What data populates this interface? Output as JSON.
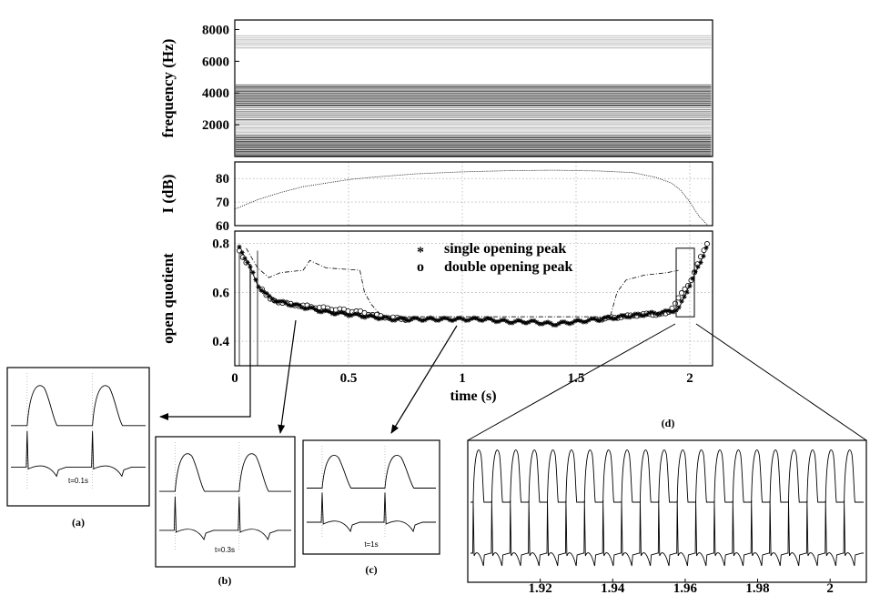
{
  "chart_data": [
    {
      "type": "heatmap",
      "panel": "spectrogram",
      "ylabel": "frequency (Hz)",
      "yticks": [
        2000,
        4000,
        6000,
        8000
      ],
      "ylim": [
        0,
        8600
      ],
      "xlim": [
        0,
        2.1
      ],
      "bands": [
        {
          "f_low": 0,
          "f_high": 1300,
          "darkness": 0.95
        },
        {
          "f_low": 1300,
          "f_high": 2300,
          "darkness": 0.3
        },
        {
          "f_low": 2300,
          "f_high": 3200,
          "darkness": 0.5
        },
        {
          "f_low": 3200,
          "f_high": 4500,
          "darkness": 0.85
        },
        {
          "f_low": 6800,
          "f_high": 7600,
          "darkness": 0.25
        }
      ]
    },
    {
      "type": "line",
      "panel": "intensity",
      "ylabel": "I (dB)",
      "yticks": [
        60,
        70,
        80
      ],
      "ylim": [
        60,
        87
      ],
      "xlim": [
        0,
        2.1
      ],
      "x": [
        0,
        0.1,
        0.2,
        0.3,
        0.4,
        0.5,
        0.6,
        0.8,
        1.0,
        1.2,
        1.4,
        1.6,
        1.75,
        1.85,
        1.92,
        1.96,
        2.0,
        2.04,
        2.08
      ],
      "y": [
        67,
        71,
        74,
        76.5,
        78,
        79.5,
        80.5,
        82,
        82.8,
        83.3,
        83.5,
        83.2,
        82.5,
        80.5,
        78,
        75,
        70,
        64,
        60
      ]
    },
    {
      "type": "line",
      "panel": "open quotient",
      "ylabel": "open quotient",
      "xlabel": "time  (s)",
      "xticks": [
        0,
        0.5,
        1,
        1.5,
        2
      ],
      "xtick_labels": [
        "0",
        "0.5",
        "1",
        "1.5",
        "2"
      ],
      "yticks": [
        0.4,
        0.6,
        0.8
      ],
      "ylim": [
        0.3,
        0.85
      ],
      "xlim": [
        0,
        2.1
      ],
      "legend": [
        {
          "marker": "*",
          "label": "single opening peak"
        },
        {
          "marker": "o",
          "label": "double opening peak"
        }
      ],
      "series": [
        {
          "marker": "*",
          "x": [
            0.02,
            0.06,
            0.1,
            0.15,
            0.2,
            0.3,
            0.4,
            0.5,
            0.6,
            0.7,
            0.8,
            0.9,
            1.0,
            1.1,
            1.2,
            1.3,
            1.4,
            1.5,
            1.6,
            1.7,
            1.8,
            1.9,
            1.95,
            2.0,
            2.05,
            2.08
          ],
          "y": [
            0.78,
            0.72,
            0.63,
            0.58,
            0.56,
            0.54,
            0.52,
            0.51,
            0.5,
            0.49,
            0.49,
            0.49,
            0.49,
            0.49,
            0.48,
            0.48,
            0.47,
            0.48,
            0.49,
            0.5,
            0.51,
            0.52,
            0.53,
            0.63,
            0.73,
            0.8
          ]
        },
        {
          "marker": "o",
          "x": [
            0.02,
            0.15,
            0.25,
            0.35,
            0.45,
            0.55,
            0.65,
            0.75,
            1.6,
            1.7,
            1.8,
            1.9,
            2.0,
            2.08
          ],
          "y": [
            0.77,
            0.57,
            0.55,
            0.54,
            0.53,
            0.52,
            0.5,
            0.49,
            0.49,
            0.5,
            0.51,
            0.51,
            0.64,
            0.81
          ]
        },
        {
          "style": "dash-dot",
          "x": [
            0.05,
            0.1,
            0.15,
            0.2,
            0.3,
            0.33,
            0.4,
            0.55,
            0.57,
            0.6,
            0.65,
            1.65,
            1.68,
            1.72,
            1.8,
            1.9,
            1.95
          ],
          "y": [
            0.78,
            0.7,
            0.66,
            0.68,
            0.69,
            0.73,
            0.7,
            0.69,
            0.6,
            0.55,
            0.5,
            0.5,
            0.6,
            0.65,
            0.67,
            0.68,
            0.69
          ]
        }
      ],
      "zoom_region": {
        "x": [
          1.94,
          2.02
        ],
        "y": [
          0.5,
          0.78
        ]
      }
    }
  ],
  "insets": {
    "a": {
      "label": "(a)",
      "time_label": "t=0.1s",
      "pulses": 2
    },
    "b": {
      "label": "(b)",
      "time_label": "t=0.3s",
      "pulses": 2
    },
    "c": {
      "label": "(c)",
      "time_label": "t=1s",
      "pulses": 2
    },
    "d": {
      "label": "(d)",
      "xticks": [
        "1.92",
        "1.94",
        "1.96",
        "1.98",
        "2"
      ],
      "xlim": [
        1.9,
        2.01
      ],
      "periods": 21
    }
  }
}
